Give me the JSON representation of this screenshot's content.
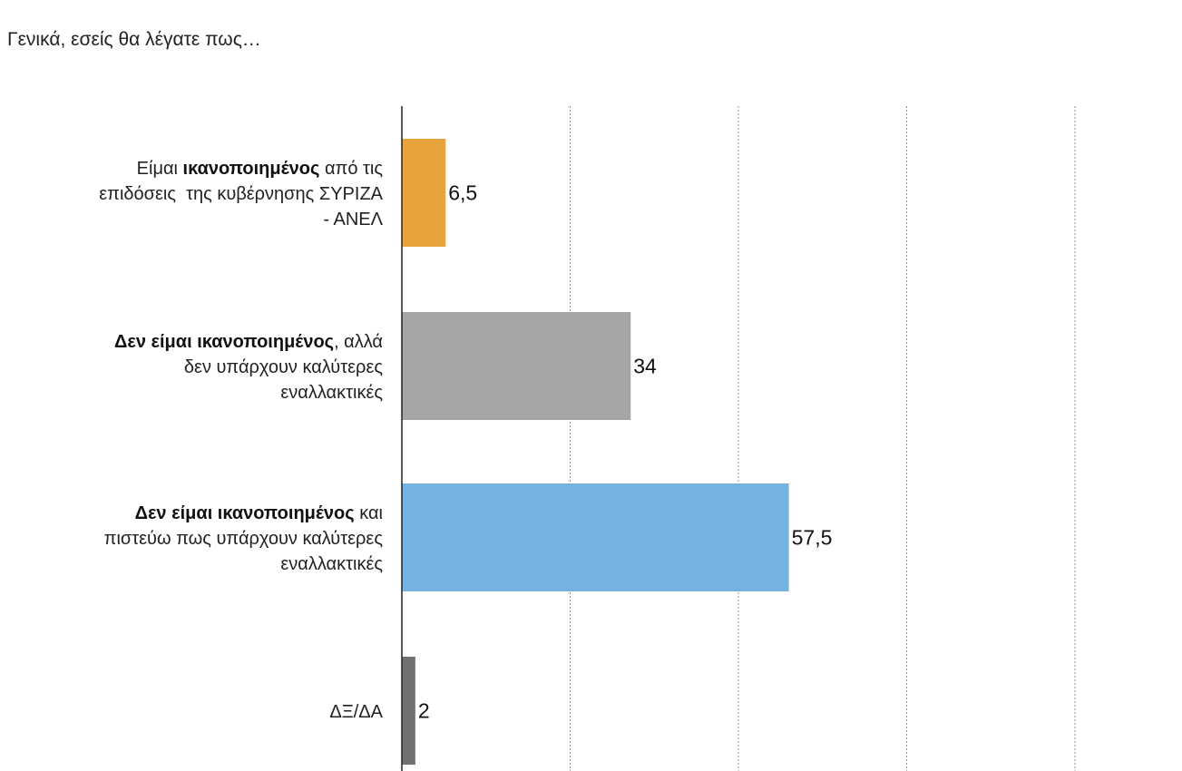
{
  "title": "Γενικά, εσείς θα λέγατε πως…",
  "chart_data": {
    "type": "bar",
    "orientation": "horizontal",
    "title": "Γενικά, εσείς θα λέγατε πως…",
    "categories": [
      "Είμαι ικανοποιημένος από τις επιδόσεις  της κυβέρνησης ΣΥΡΙΖΑ - ΑΝΕΛ",
      "Δεν είμαι ικανοποιημένος, αλλά δεν υπάρχουν καλύτερες εναλλακτικές",
      "Δεν είμαι ικανοποιημένος και πιστεύω πως υπάρχουν καλύτερες εναλλακτικές",
      "ΔΞ/ΔΑ"
    ],
    "category_lines": [
      [
        [
          {
            "t": "Είμαι ",
            "b": false
          },
          {
            "t": "ικανοποιημένος",
            "b": true
          },
          {
            "t": " από τις",
            "b": false
          }
        ],
        [
          {
            "t": "επιδόσεις  της κυβέρνησης ΣΥΡΙΖΑ",
            "b": false
          }
        ],
        [
          {
            "t": "- ΑΝΕΛ",
            "b": false
          }
        ]
      ],
      [
        [
          {
            "t": "Δεν είμαι ικανοποιημένος",
            "b": true
          },
          {
            "t": ", αλλά",
            "b": false
          }
        ],
        [
          {
            "t": "δεν υπάρχουν καλύτερες",
            "b": false
          }
        ],
        [
          {
            "t": "εναλλακτικές",
            "b": false
          }
        ]
      ],
      [
        [
          {
            "t": "Δεν είμαι ικανοποιημένος",
            "b": true
          },
          {
            "t": " και",
            "b": false
          }
        ],
        [
          {
            "t": "πιστεύω πως υπάρχουν καλύτερες",
            "b": false
          }
        ],
        [
          {
            "t": "εναλλακτικές",
            "b": false
          }
        ]
      ],
      [
        [
          {
            "t": "ΔΞ/ΔΑ",
            "b": false
          }
        ]
      ]
    ],
    "values": [
      6.5,
      34,
      57.5,
      2
    ],
    "value_labels": [
      "6,5",
      "34",
      "57,5",
      "2"
    ],
    "colors": [
      "#E8A33C",
      "#A5A5A5",
      "#74B3DF",
      "#6E716F"
    ],
    "xlim": [
      0,
      100
    ],
    "grid": true,
    "gridlines": [
      25,
      50,
      75,
      100
    ]
  }
}
